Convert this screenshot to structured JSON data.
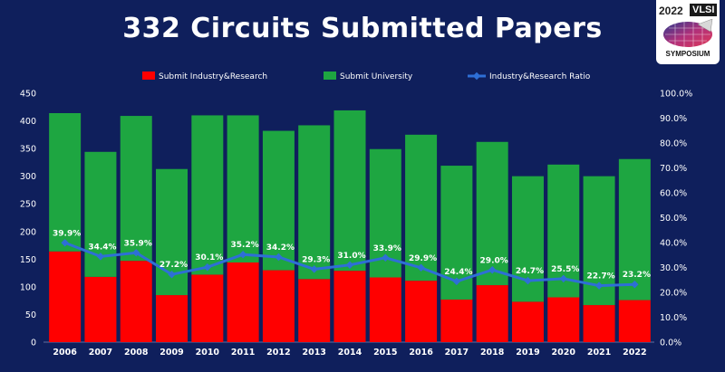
{
  "chart_data": {
    "type": "bar",
    "title": "332 Circuits Submitted Papers",
    "categories": [
      "2006",
      "2007",
      "2008",
      "2009",
      "2010",
      "2011",
      "2012",
      "2013",
      "2014",
      "2015",
      "2016",
      "2017",
      "2018",
      "2019",
      "2020",
      "2021",
      "2022"
    ],
    "series": [
      {
        "name": "Submit Industry&Research",
        "type": "bar",
        "stack": "total",
        "color": "#ff0000",
        "values": [
          164,
          118,
          147,
          85,
          122,
          144,
          130,
          114,
          129,
          117,
          111,
          77,
          103,
          73,
          81,
          67,
          76
        ]
      },
      {
        "name": "Submit University",
        "type": "bar",
        "stack": "total",
        "color": "#1ea641",
        "values": [
          250,
          226,
          262,
          228,
          288,
          266,
          252,
          278,
          290,
          232,
          264,
          242,
          259,
          227,
          240,
          233,
          255
        ]
      },
      {
        "name": "Industry&Research Ratio",
        "type": "line",
        "axis": "right",
        "color": "#2e6fd6",
        "values": [
          39.9,
          34.4,
          35.9,
          27.2,
          30.1,
          35.2,
          34.2,
          29.3,
          31.0,
          33.9,
          29.9,
          24.4,
          29.0,
          24.7,
          25.5,
          22.7,
          23.2
        ],
        "labels": [
          "39.9%",
          "34.4%",
          "35.9%",
          "27.2%",
          "30.1%",
          "35.2%",
          "34.2%",
          "29.3%",
          "31.0%",
          "33.9%",
          "29.9%",
          "24.4%",
          "29.0%",
          "24.7%",
          "25.5%",
          "22.7%",
          "23.2%"
        ]
      }
    ],
    "y_left": {
      "min": 0,
      "max": 450,
      "step": 50,
      "ticks": [
        "0",
        "50",
        "100",
        "150",
        "200",
        "250",
        "300",
        "350",
        "400",
        "450"
      ]
    },
    "y_right": {
      "min": 0,
      "max": 100,
      "step": 10,
      "ticks": [
        "0.0%",
        "10.0%",
        "20.0%",
        "30.0%",
        "40.0%",
        "50.0%",
        "60.0%",
        "70.0%",
        "80.0%",
        "90.0%",
        "100.0%"
      ]
    },
    "legend_position": "top"
  },
  "logo": {
    "year": "2022",
    "name": "VLSI",
    "caption": "SYMPOSIUM"
  }
}
